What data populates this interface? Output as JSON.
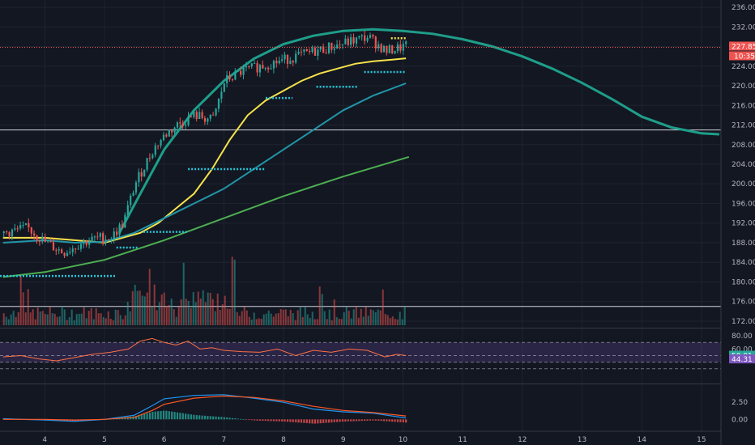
{
  "chart_data": [
    {
      "type": "candlestick",
      "panel": "price",
      "x_ticks": [
        4,
        5,
        6,
        7,
        8,
        9,
        10,
        11,
        12,
        13,
        14,
        15
      ],
      "y_ticks": [
        172,
        176,
        180,
        184,
        188,
        192,
        196,
        200,
        204,
        208,
        212,
        216,
        220,
        224,
        228,
        232,
        236
      ],
      "y_tick_labels": [
        "172.00",
        "176.00",
        "180.00",
        "184.00",
        "188.00",
        "192.00",
        "196.00",
        "200.00",
        "204.00",
        "208.00",
        "212.00",
        "216.00",
        "220.00",
        "224.00",
        "228.00",
        "232.00",
        "236.00"
      ],
      "ylim": [
        171,
        237
      ],
      "xlim": [
        3.25,
        15.3
      ],
      "last_price": 227.85,
      "last_price_label": "227.85",
      "countdown_label": "10:35",
      "horizontal_lines": [
        211,
        175
      ],
      "close_anchors": {
        "x": [
          3.3,
          3.7,
          4.0,
          4.3,
          4.6,
          4.9,
          5.1,
          5.3,
          5.5,
          5.8,
          6.0,
          6.2,
          6.5,
          6.8,
          7.0,
          7.3,
          7.6,
          7.9,
          8.2,
          8.5,
          8.8,
          9.1,
          9.4,
          9.7,
          10.0
        ],
        "y": [
          190,
          191,
          188,
          186,
          188,
          189,
          189,
          192,
          200,
          207,
          210,
          212,
          214,
          213,
          221,
          223,
          224,
          225,
          226,
          227,
          228,
          229,
          230,
          227,
          228
        ]
      },
      "moving_averages": [
        {
          "color": "#f7e34b",
          "x": [
            3.3,
            4.0,
            4.5,
            5.0,
            5.3,
            5.6,
            5.9,
            6.2,
            6.5,
            6.8,
            7.1,
            7.4,
            7.7,
            8.0,
            8.3,
            8.6,
            8.9,
            9.2,
            9.5,
            9.8,
            10.05
          ],
          "y": [
            189,
            189,
            188.5,
            188,
            189,
            190,
            192,
            195,
            198,
            203,
            209,
            214,
            217,
            219,
            221,
            222.5,
            223.5,
            224.5,
            225,
            225.3,
            225.6
          ]
        },
        {
          "color": "#2196a8",
          "x": [
            3.3,
            4.0,
            4.5,
            5.0,
            5.5,
            6.0,
            6.5,
            7.0,
            7.5,
            8.0,
            8.5,
            9.0,
            9.5,
            10.05
          ],
          "y": [
            188,
            188.5,
            188,
            188.2,
            190,
            193,
            196,
            199,
            203,
            207,
            211,
            215,
            218,
            220.5
          ]
        },
        {
          "color": "#4caf50",
          "x": [
            3.3,
            4.0,
            5.0,
            6.0,
            7.0,
            8.0,
            9.0,
            10.1
          ],
          "y": [
            181,
            182,
            184.5,
            188.5,
            193,
            197.5,
            201.5,
            205.5
          ]
        }
      ],
      "arc": {
        "color": "#1e9e8a",
        "x": [
          5.25,
          5.6,
          6.0,
          6.5,
          7.0,
          7.5,
          8.0,
          8.5,
          9.0,
          9.5,
          10.0,
          10.5,
          11.0,
          11.5,
          12.0,
          12.5,
          13.0,
          13.5,
          14.0,
          14.5,
          15.0,
          15.3
        ],
        "y": [
          190,
          198,
          207,
          215,
          221,
          225.5,
          228.5,
          230.2,
          231.2,
          231.5,
          231.2,
          230.6,
          229.5,
          228.0,
          226.0,
          223.5,
          220.6,
          217.3,
          213.7,
          211.5,
          210.3,
          210.1
        ]
      },
      "dotted_levels": [
        {
          "color": "#26c6da",
          "x0": 3.25,
          "x1": 5.2,
          "y": 181.2
        },
        {
          "color": "#26c6da",
          "x0": 5.2,
          "x1": 5.55,
          "y": 187.0
        },
        {
          "color": "#26c6da",
          "x0": 5.65,
          "x1": 6.4,
          "y": 190.2
        },
        {
          "color": "#26c6da",
          "x0": 6.4,
          "x1": 7.7,
          "y": 203.0
        },
        {
          "color": "#26c6da",
          "x0": 7.7,
          "x1": 8.15,
          "y": 217.5
        },
        {
          "color": "#26c6da",
          "x0": 8.55,
          "x1": 9.25,
          "y": 219.8
        },
        {
          "color": "#26c6da",
          "x0": 9.35,
          "x1": 10.05,
          "y": 222.8
        },
        {
          "color": "#f7e34b",
          "x0": 9.8,
          "x1": 10.05,
          "y": 229.7
        }
      ]
    },
    {
      "type": "bar",
      "panel": "volume",
      "up_color": "#26a69a",
      "down_color": "#ef5350",
      "note": "volume histogram, unlabeled"
    },
    {
      "type": "line",
      "panel": "rsi",
      "y_ticks": [
        60,
        80
      ],
      "y_tick_labels": [
        "60.00",
        "80.00"
      ],
      "ylim": [
        10,
        90
      ],
      "band": [
        40,
        70
      ],
      "current_values": [
        50.01,
        44.31
      ],
      "current_labels": [
        "50.01",
        "44.31"
      ],
      "line_color": "#ff7043",
      "x": [
        3.3,
        3.6,
        3.9,
        4.2,
        4.5,
        4.8,
        5.1,
        5.4,
        5.6,
        5.8,
        6.0,
        6.2,
        6.4,
        6.6,
        6.8,
        7.0,
        7.3,
        7.6,
        7.9,
        8.2,
        8.5,
        8.8,
        9.1,
        9.4,
        9.7,
        9.9,
        10.05
      ],
      "y": [
        48,
        50,
        45,
        42,
        47,
        52,
        55,
        60,
        72,
        76,
        70,
        66,
        72,
        60,
        62,
        58,
        56,
        55,
        60,
        50,
        58,
        55,
        60,
        58,
        48,
        52,
        50
      ]
    },
    {
      "type": "line",
      "panel": "macd",
      "y_ticks": [
        0,
        2.5
      ],
      "y_tick_labels": [
        "0.00",
        "2.50"
      ],
      "ylim": [
        -1.5,
        5
      ],
      "series": [
        {
          "color": "#2196f3",
          "x": [
            3.3,
            4.0,
            4.5,
            5.0,
            5.5,
            5.8,
            6.0,
            6.5,
            7.0,
            7.5,
            8.0,
            8.5,
            9.0,
            9.5,
            10.05
          ],
          "y": [
            0.1,
            -0.1,
            -0.3,
            0.0,
            0.6,
            2.0,
            3.0,
            3.5,
            3.6,
            3.1,
            2.5,
            1.5,
            1.1,
            0.9,
            0.2
          ]
        },
        {
          "color": "#ff5722",
          "x": [
            3.3,
            4.0,
            4.5,
            5.0,
            5.5,
            5.8,
            6.0,
            6.5,
            7.0,
            7.5,
            8.0,
            8.5,
            9.0,
            9.5,
            10.05
          ],
          "y": [
            0.0,
            0.0,
            -0.1,
            0.0,
            0.3,
            1.3,
            2.2,
            3.1,
            3.4,
            3.2,
            2.7,
            1.9,
            1.3,
            1.0,
            0.5
          ]
        }
      ]
    }
  ]
}
